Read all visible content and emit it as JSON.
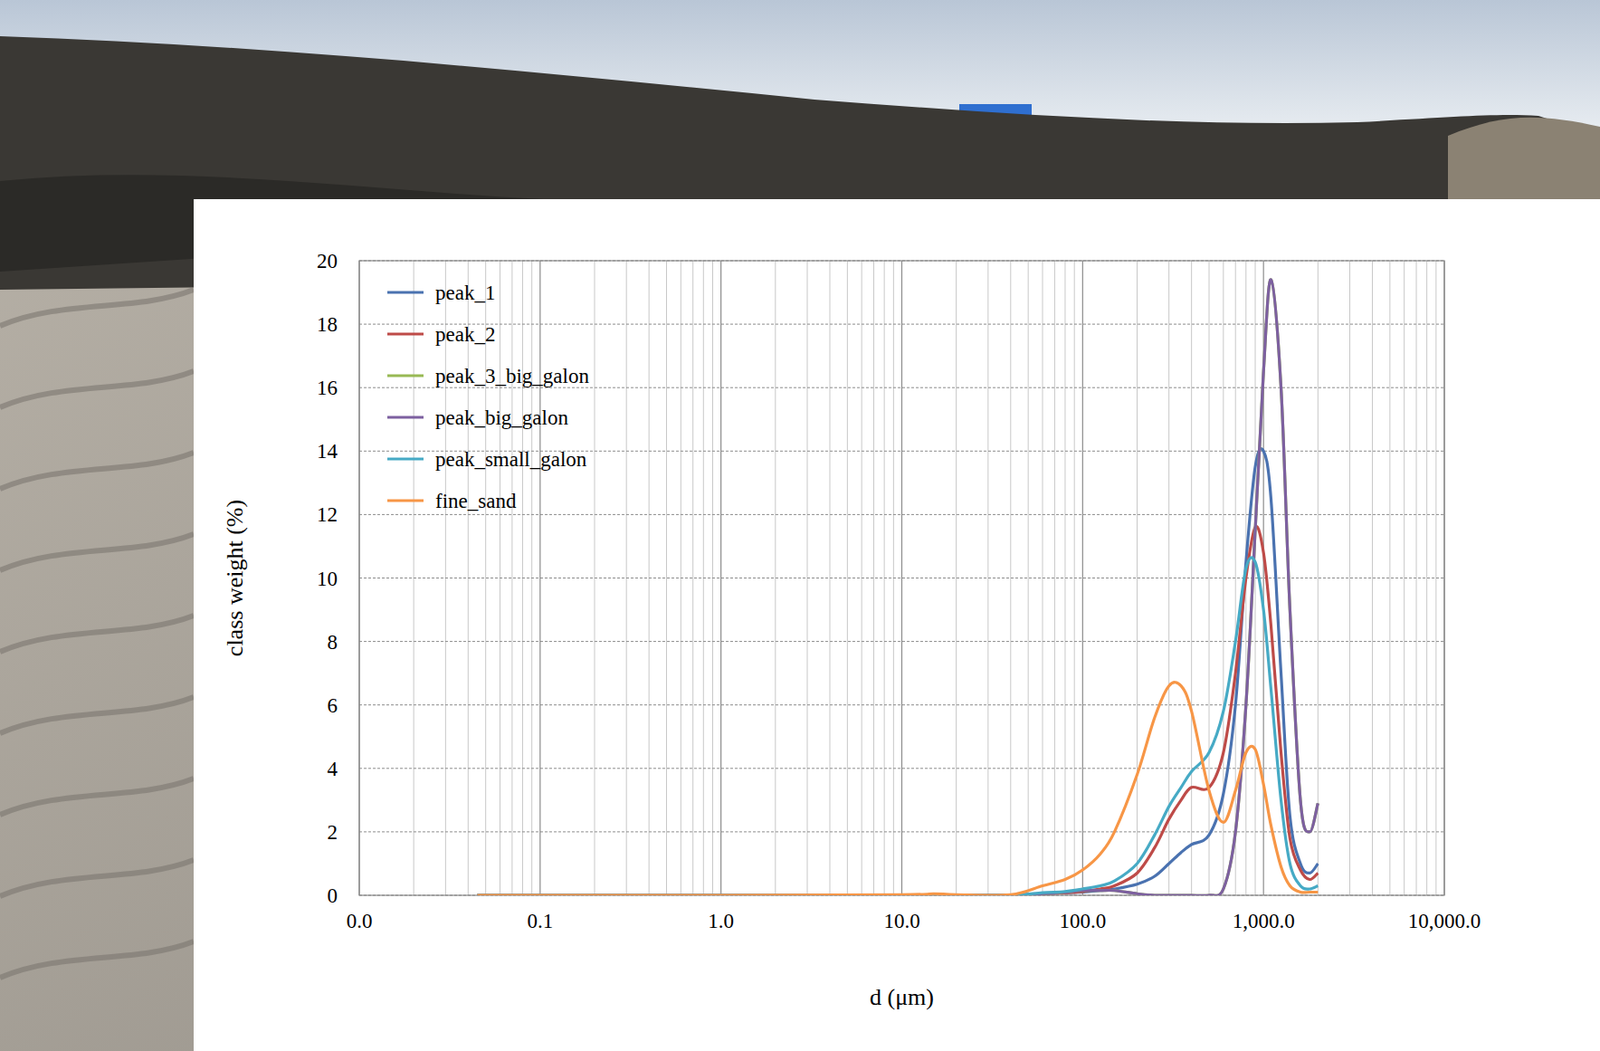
{
  "chart_data": {
    "type": "line",
    "x_label": "d (μm)",
    "y_label": "class weight  (%)",
    "log": "x",
    "grid": true,
    "legend": "upper left",
    "xlim": [
      0.01,
      10000
    ],
    "xticks": [
      {
        "value": 0.01,
        "label": "0.0"
      },
      {
        "value": 0.1,
        "label": "0.1"
      },
      {
        "value": 1,
        "label": "1.0"
      },
      {
        "value": 10,
        "label": "10.0"
      },
      {
        "value": 100,
        "label": "100.0"
      },
      {
        "value": 1000,
        "label": "1,000.0"
      },
      {
        "value": 10000,
        "label": "10,000.0"
      }
    ],
    "ylim": [
      0,
      20
    ],
    "yticks": [
      0,
      2,
      4,
      6,
      8,
      10,
      12,
      14,
      16,
      18,
      20
    ],
    "x": [
      0.045,
      0.1,
      1,
      10,
      15,
      20,
      40,
      60,
      80,
      100,
      125,
      150,
      200,
      250,
      300,
      350,
      400,
      500,
      600,
      700,
      800,
      900,
      1000,
      1100,
      1250,
      1400,
      1600,
      1800,
      2000
    ],
    "series": [
      {
        "name": "peak_1",
        "color": "#4a72b0",
        "values": [
          0,
          0,
          0,
          0,
          0,
          0,
          0,
          0.05,
          0.08,
          0.1,
          0.15,
          0.2,
          0.35,
          0.6,
          1.0,
          1.35,
          1.6,
          1.9,
          3.2,
          6,
          10.5,
          13.5,
          14,
          12.5,
          7,
          2.5,
          1.0,
          0.7,
          1.0
        ]
      },
      {
        "name": "peak_2",
        "color": "#be4b48",
        "values": [
          0,
          0,
          0,
          0,
          0,
          0,
          0,
          0.05,
          0.08,
          0.12,
          0.2,
          0.3,
          0.7,
          1.5,
          2.4,
          3.0,
          3.4,
          3.4,
          4.5,
          7,
          10,
          11.6,
          10.8,
          8.5,
          4.5,
          1.8,
          0.8,
          0.5,
          0.7
        ]
      },
      {
        "name": "peak_3_big_galon",
        "color": "#98b954",
        "values": [
          0,
          0,
          0,
          0,
          0,
          0,
          0,
          0.05,
          0.1,
          0.15,
          0.15,
          0.15,
          0.05,
          0,
          0,
          0,
          0,
          0,
          0.2,
          2,
          6,
          11.5,
          16.5,
          19.4,
          16,
          9,
          3,
          2,
          2.9
        ]
      },
      {
        "name": "peak_big_galon",
        "color": "#7d60a0",
        "values": [
          0,
          0,
          0,
          0,
          0,
          0,
          0,
          0.05,
          0.1,
          0.15,
          0.15,
          0.15,
          0.05,
          0,
          0,
          0,
          0,
          0,
          0.2,
          2,
          6,
          11.5,
          16.5,
          19.4,
          16,
          9,
          3,
          2,
          2.9
        ]
      },
      {
        "name": "peak_small_galon",
        "color": "#46aac5",
        "values": [
          0,
          0,
          0,
          0,
          0,
          0,
          0,
          0.08,
          0.12,
          0.2,
          0.3,
          0.45,
          1.0,
          1.9,
          2.8,
          3.4,
          3.9,
          4.5,
          5.8,
          8,
          10.3,
          10.5,
          9,
          6.5,
          3,
          1.0,
          0.3,
          0.2,
          0.3
        ]
      },
      {
        "name": "fine_sand",
        "color": "#f79646",
        "values": [
          0,
          0,
          0,
          0.02,
          0.05,
          0.02,
          0.02,
          0.3,
          0.5,
          0.8,
          1.3,
          2.0,
          3.8,
          5.6,
          6.6,
          6.6,
          5.8,
          3.3,
          2.3,
          3.3,
          4.5,
          4.6,
          3.5,
          2.2,
          0.9,
          0.3,
          0.1,
          0.1,
          0.1
        ]
      }
    ]
  }
}
